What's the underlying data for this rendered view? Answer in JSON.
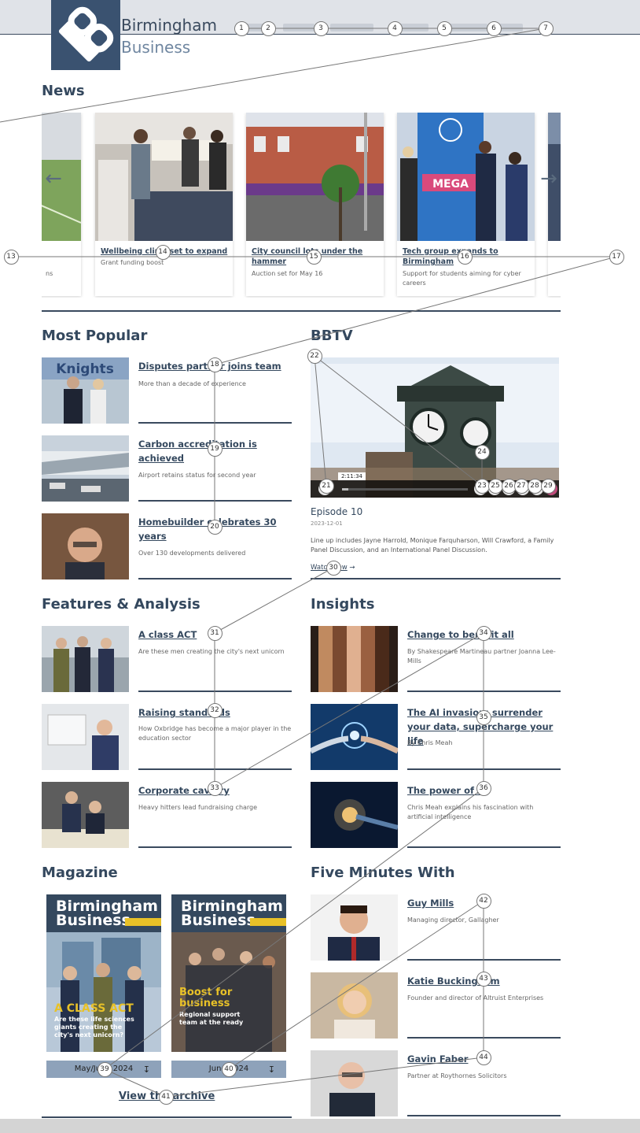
{
  "brand": {
    "line1": "Birmingham",
    "line2": "Business"
  },
  "sections": {
    "news": "News",
    "most_popular": "Most Popular",
    "bbtv": "BBTV",
    "features": "Features & Analysis",
    "insights": "Insights",
    "magazine": "Magazine",
    "five_minutes": "Five Minutes With"
  },
  "news": [
    {
      "title": "Wellbeing clinic set to expand",
      "sub": "Grant funding boost"
    },
    {
      "title": "City council lots under the hammer",
      "sub": "Auction set for May 16"
    },
    {
      "title": "Tech group expands to Birmingham",
      "sub": "Support for students aiming for cyber careers"
    }
  ],
  "news_partial_left_sub": "ns",
  "most_popular": [
    {
      "title": "Disputes partner joins team",
      "desc": "More than a decade of experience"
    },
    {
      "title": "Carbon accreditation is achieved",
      "desc": "Airport retains status for second year"
    },
    {
      "title": "Homebuilder celebrates 30 years",
      "desc": "Over 130 developments delivered"
    }
  ],
  "bbtv": {
    "episode": "Episode 10",
    "date": "2023-12-01",
    "desc": "Line up includes Jayne Harrold, Monique Farquharson, Will Crawford, a Family Panel Discussion, and an International Panel Discussion.",
    "watch": "Watch now",
    "time": "2:11:34",
    "progress": 0.05
  },
  "features": [
    {
      "title": "A class ACT",
      "desc": "Are these men creating the city's next unicorn"
    },
    {
      "title": "Raising standards",
      "desc": "How Oxbridge has become a major player in the education sector"
    },
    {
      "title": "Corporate cavalry",
      "desc": "Heavy hitters lead fundraising charge"
    }
  ],
  "insights": [
    {
      "title": "Change to benefit all",
      "desc": "By Shakespeare Martineau partner Joanna Lee-Mills"
    },
    {
      "title": "The AI invasion: surrender your data, supercharge your life",
      "desc": "By Chris Meah"
    },
    {
      "title": "The power of AI",
      "desc": "Chris Meah explains his fascination with artificial intelligence"
    }
  ],
  "magazine": {
    "covers": [
      {
        "date": "May/June 2024",
        "headline": "A CLASS ACT",
        "sub": "Are these life sciences giants creating the city's next unicorn?"
      },
      {
        "date": "June 2024",
        "headline": "Boost for business",
        "sub": "Regional support team at the ready"
      }
    ],
    "cover_title_1": "Birmingham",
    "cover_title_2": "Business",
    "view_archive": "View the archive"
  },
  "five_minutes": [
    {
      "title": "Guy Mills",
      "desc": "Managing director, Gallagher"
    },
    {
      "title": "Katie Buckingham",
      "desc": "Founder and director of Altruist Enterprises"
    },
    {
      "title": "Gavin Faber",
      "desc": "Partner at Roythornes Solicitors"
    }
  ],
  "markers": [
    "1",
    "2",
    "3",
    "4",
    "5",
    "6",
    "7",
    "13",
    "14",
    "15",
    "16",
    "17",
    "18",
    "19",
    "20",
    "21",
    "22",
    "23",
    "24",
    "25",
    "26",
    "27",
    "28",
    "29",
    "30",
    "31",
    "32",
    "33",
    "34",
    "35",
    "36",
    "39",
    "40",
    "41",
    "42",
    "43",
    "44"
  ],
  "colors": {
    "navy": "#34485e",
    "accent_yellow": "#e8c128",
    "topbar": "#e0e3e8"
  }
}
